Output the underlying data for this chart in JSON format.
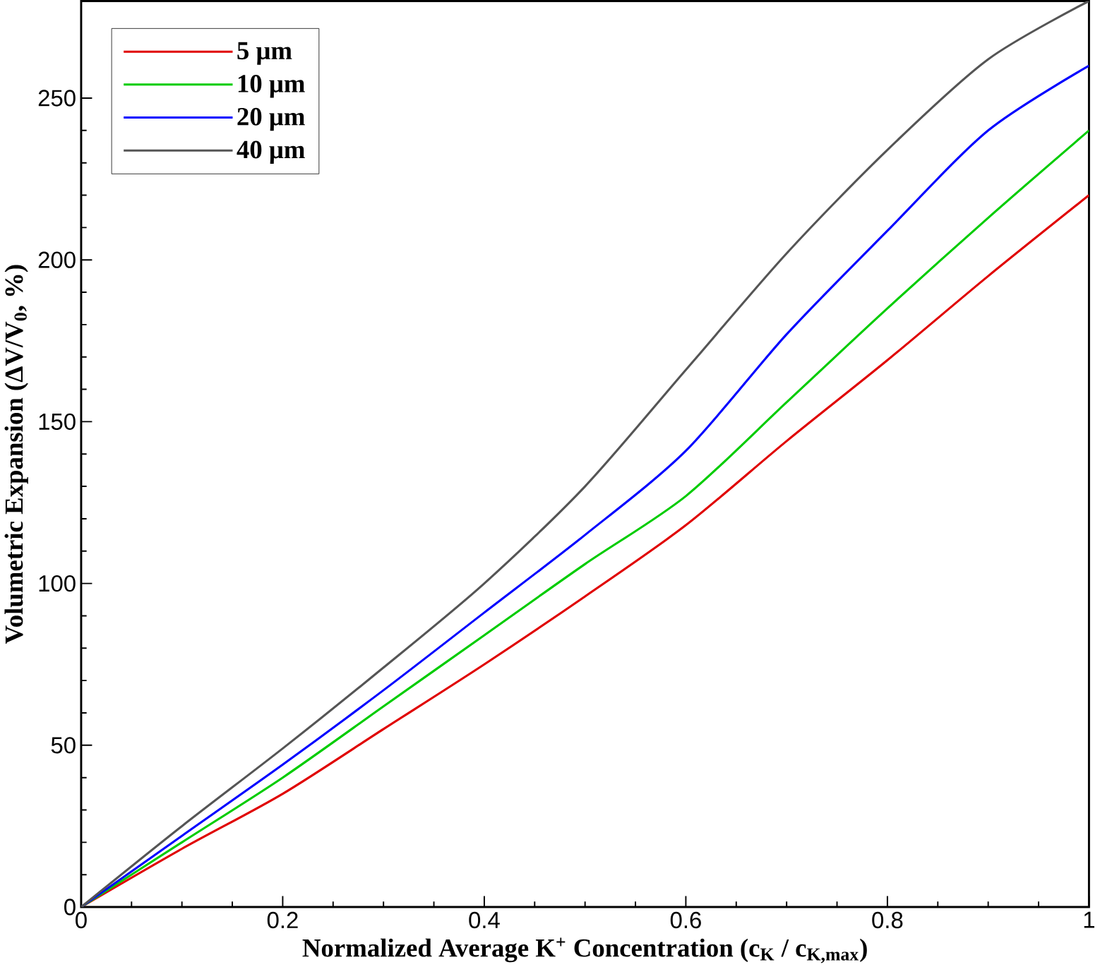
{
  "chart_data": {
    "type": "line",
    "xlabel": "Normalized Average K$^{+}$ Concentration (c$_{K}$ / c$_{K,max}$)",
    "ylabel": "Volumetric Expansion (ΔV/V$_{0}$, %)",
    "x": [
      0,
      0.1,
      0.2,
      0.3,
      0.4,
      0.5,
      0.6,
      0.7,
      0.8,
      0.9,
      1
    ],
    "series": [
      {
        "name": "5 μm",
        "color": "#e00000",
        "values": [
          0,
          18,
          35,
          55,
          75,
          96,
          118,
          144,
          169,
          195,
          220
        ]
      },
      {
        "name": "10 μm",
        "color": "#00cc00",
        "values": [
          0,
          20,
          40,
          62,
          84,
          106,
          127,
          156,
          185,
          213,
          240
        ]
      },
      {
        "name": "20 μm",
        "color": "#0000ff",
        "values": [
          0,
          22,
          44,
          67,
          91,
          115,
          141,
          177,
          209,
          240,
          260
        ]
      },
      {
        "name": "40 μm",
        "color": "#555555",
        "values": [
          0,
          25,
          49,
          74,
          100,
          130,
          166,
          202,
          234,
          262,
          280
        ]
      }
    ],
    "xlim": [
      0,
      1
    ],
    "ylim": [
      0,
      280
    ],
    "xticks": [
      0,
      0.2,
      0.4,
      0.6,
      0.8,
      1
    ],
    "yticks": [
      0,
      50,
      100,
      150,
      200,
      250
    ],
    "legend": "top left",
    "grid": false,
    "marker": "none",
    "line_style": "solid"
  }
}
